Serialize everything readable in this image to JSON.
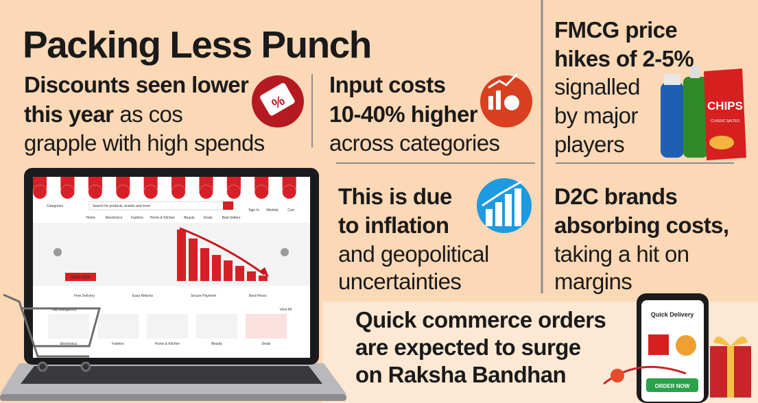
{
  "title": "Packing Less Punch",
  "panels": [
    {
      "lines": [
        [
          {
            "text": "Discounts seen lower",
            "bold": true
          }
        ],
        [
          {
            "text": "this year",
            "bold": true
          },
          {
            "text": "as cos",
            "bold": false
          }
        ],
        [
          {
            "text": "grapple with high spends",
            "bold": false
          }
        ]
      ]
    },
    {
      "lines": [
        [
          {
            "text": "Input costs",
            "bold": true
          }
        ],
        [
          {
            "text": "10-40% higher",
            "bold": true
          }
        ],
        [
          {
            "text": "across categories",
            "bold": false
          }
        ]
      ]
    },
    {
      "lines": [
        [
          {
            "text": "This is due",
            "bold": true
          }
        ],
        [
          {
            "text": "to inflation",
            "bold": true
          }
        ],
        [
          {
            "text": "and geopolitical",
            "bold": false
          }
        ],
        [
          {
            "text": "uncertainties",
            "bold": false
          }
        ]
      ]
    },
    {
      "lines": [
        [
          {
            "text": "FMCG price",
            "bold": true
          }
        ],
        [
          {
            "text": "hikes of 2-5%",
            "bold": true
          }
        ],
        [
          {
            "text": "signalled",
            "bold": false
          }
        ],
        [
          {
            "text": "by major",
            "bold": false
          }
        ],
        [
          {
            "text": "players",
            "bold": false
          }
        ]
      ]
    },
    {
      "lines": [
        [
          {
            "text": "D2C brands",
            "bold": true
          }
        ],
        [
          {
            "text": "absorbing costs,",
            "bold": true
          }
        ],
        [
          {
            "text": "taking a hit on",
            "bold": false
          }
        ],
        [
          {
            "text": "margins",
            "bold": false
          }
        ]
      ]
    },
    {
      "lines": [
        [
          {
            "text": "Quick commerce orders",
            "bold": true
          }
        ],
        [
          {
            "text": "are expected to surge",
            "bold": true
          }
        ],
        [
          {
            "text": "on Raksha Bandhan",
            "bold": true
          }
        ]
      ]
    }
  ],
  "laptop": {
    "menu": "Categories",
    "search": "Search for products, brands and more",
    "header_links": [
      "Sign In",
      "Wishlist",
      "Cart"
    ],
    "nav": [
      "Home",
      "Electronics",
      "Fashion",
      "Home & Kitchen",
      "Beauty",
      "Deals",
      "Best Sellers"
    ],
    "cta": "SHOP NOW",
    "features": [
      "Free Delivery",
      "Easy Returns",
      "Secure Payment",
      "Best Prices"
    ],
    "section": "Top Categories",
    "view_all": "View All",
    "categories": [
      "Electronics",
      "Fashion",
      "Home & Kitchen",
      "Beauty",
      "Deals"
    ]
  },
  "chips": {
    "brand": "CHIPS",
    "flavor": "CLASSIC SALTED"
  },
  "phone": {
    "header": "Quick Delivery",
    "button": "ORDER NOW"
  }
}
